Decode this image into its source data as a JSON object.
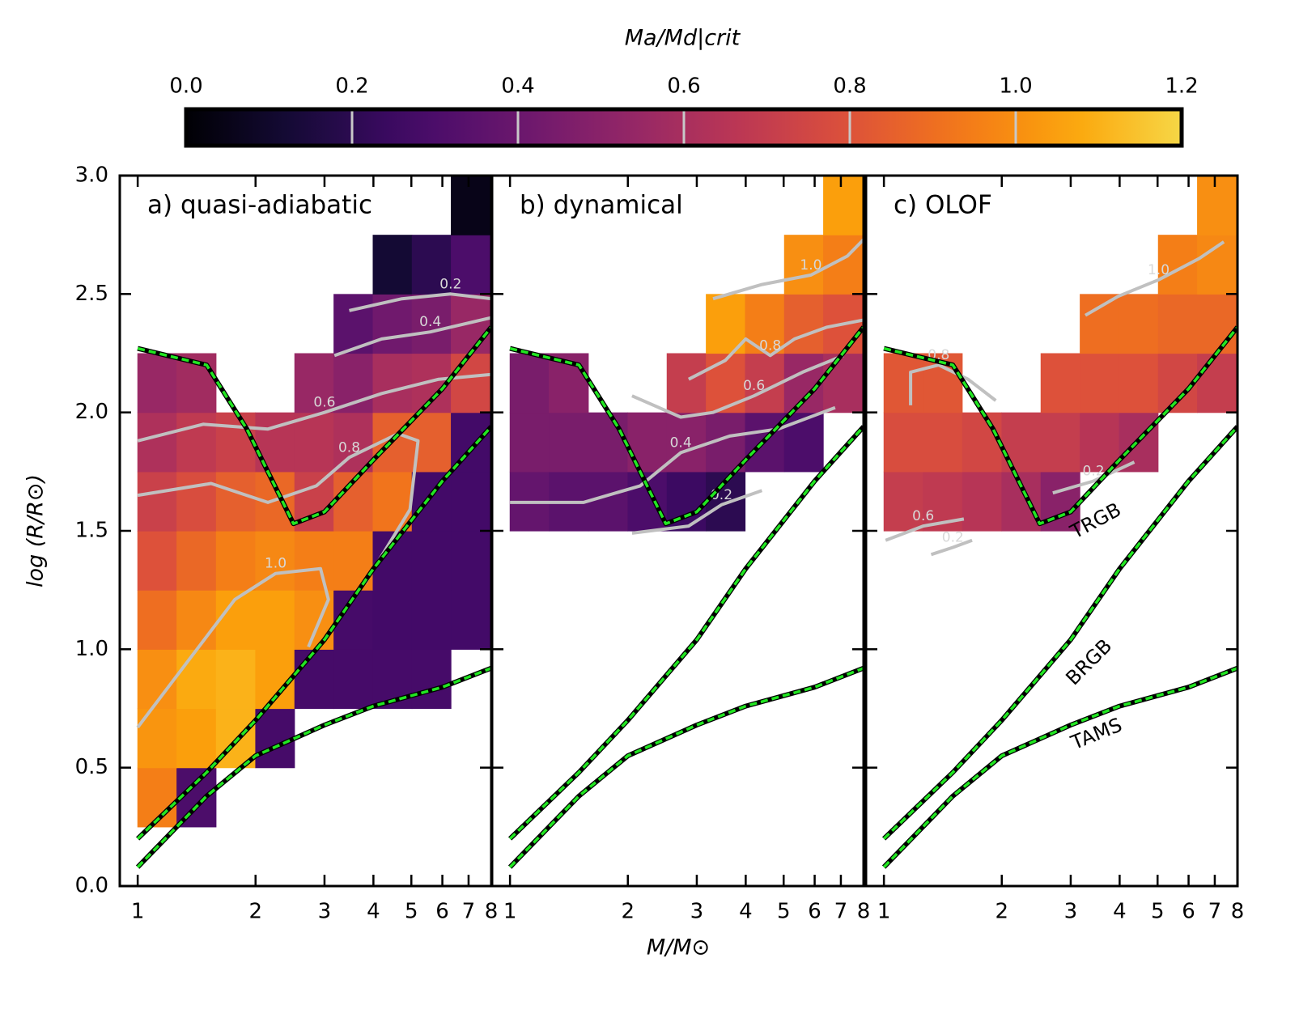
{
  "chart_data": {
    "type": "heatmap",
    "xlabel": "M/M⊙",
    "ylabel": "log (R/R⊙)",
    "xscale": "log",
    "xlim": [
      0.9,
      8
    ],
    "xticks": [
      1,
      2,
      3,
      4,
      5,
      6,
      7,
      8
    ],
    "ylim": [
      0,
      3
    ],
    "yticks": [
      {
        "value": 0,
        "label": "0.0"
      },
      0.5,
      {
        "value": 1,
        "label": "1.0"
      },
      1.5,
      {
        "value": 2,
        "label": "2.0"
      },
      2.5,
      {
        "value": 3,
        "label": "3.0"
      }
    ],
    "colorbar": {
      "label": "Ma/Md|crit",
      "colormap": "inferno",
      "lim": [
        0,
        1.2
      ],
      "ticks": [
        {
          "value": 0,
          "label": "0.0"
        },
        0.2,
        0.4,
        0.6,
        0.8,
        {
          "value": 1,
          "label": "1.0"
        },
        1.2
      ]
    },
    "contour_color": "#c0c0c0",
    "x": [
      1.12,
      1.41,
      1.78,
      2.24,
      2.82,
      3.55,
      4.47,
      5.62,
      7.08
    ],
    "y": [
      0.125,
      0.375,
      0.625,
      0.875,
      1.125,
      1.375,
      1.625,
      1.875,
      2.125,
      2.375,
      2.625,
      2.875
    ],
    "curves": [
      {
        "name": "TAMS",
        "color": "#22e622",
        "x": [
          1,
          1.5,
          2,
          3,
          4,
          6,
          8
        ],
        "y": [
          0.08,
          0.38,
          0.55,
          0.68,
          0.76,
          0.84,
          0.92
        ]
      },
      {
        "name": "BRGB",
        "color": "#22e622",
        "x": [
          1,
          1.5,
          2,
          3,
          4,
          6,
          8
        ],
        "y": [
          0.2,
          0.48,
          0.7,
          1.04,
          1.34,
          1.71,
          1.94
        ]
      },
      {
        "name": "TRGB",
        "color": "#22e622",
        "x": [
          1,
          1.5,
          1.9,
          2.5,
          3,
          4,
          6,
          8
        ],
        "y": [
          2.27,
          2.2,
          1.93,
          1.53,
          1.58,
          1.8,
          2.1,
          2.36
        ]
      }
    ],
    "panels": [
      {
        "title": "a) quasi-adiabatic",
        "values": [
          [
            null,
            null,
            null,
            null,
            null,
            null,
            null,
            null,
            null
          ],
          [
            0.95,
            0.3,
            null,
            null,
            null,
            null,
            null,
            null,
            null
          ],
          [
            1.02,
            1.05,
            1.1,
            0.28,
            null,
            null,
            null,
            null,
            null
          ],
          [
            1.0,
            1.08,
            1.1,
            1.05,
            0.28,
            0.28,
            0.28,
            0.28,
            null
          ],
          [
            0.9,
            0.98,
            1.05,
            1.05,
            1.0,
            0.28,
            0.27,
            0.27,
            0.27
          ],
          [
            0.8,
            0.88,
            0.95,
            0.98,
            0.95,
            0.95,
            0.27,
            0.27,
            0.27
          ],
          [
            0.72,
            0.78,
            0.85,
            0.88,
            0.72,
            0.85,
            0.92,
            0.27,
            0.27
          ],
          [
            0.62,
            0.68,
            0.72,
            0.65,
            0.65,
            0.62,
            0.85,
            0.85,
            0.27
          ],
          [
            0.55,
            0.58,
            null,
            null,
            0.55,
            0.5,
            0.6,
            0.62,
            0.75
          ],
          [
            null,
            null,
            null,
            null,
            null,
            0.35,
            0.42,
            0.45,
            0.55
          ],
          [
            null,
            null,
            null,
            null,
            null,
            null,
            0.12,
            0.2,
            0.3
          ],
          [
            null,
            null,
            null,
            null,
            null,
            null,
            null,
            null,
            0.05
          ]
        ],
        "contours": [
          {
            "label": "0.2",
            "x": [
              3.47,
              4.73,
              6.3,
              8.0
            ],
            "y": [
              2.43,
              2.48,
              2.5,
              2.48
            ]
          },
          {
            "label": "0.4",
            "x": [
              3.18,
              4.2,
              5.59,
              8.0
            ],
            "y": [
              2.24,
              2.31,
              2.34,
              2.4
            ]
          },
          {
            "label": "0.6",
            "x": [
              1,
              1.47,
              2.15,
              3.0,
              4.2,
              5.87,
              8.0
            ],
            "y": [
              1.88,
              1.95,
              1.93,
              2.0,
              2.08,
              2.14,
              2.16
            ]
          },
          {
            "label": "0.8",
            "x": [
              1,
              1.54,
              2.15,
              2.86,
              3.47,
              4.62,
              5.2,
              4.96,
              3.81
            ],
            "y": [
              1.65,
              1.7,
              1.62,
              1.69,
              1.81,
              1.91,
              1.88,
              1.59,
              1.28
            ]
          },
          {
            "label": "1.0",
            "x": [
              1,
              1.33,
              1.77,
              2.25,
              2.93,
              3.07,
              2.73
            ],
            "y": [
              0.67,
              0.94,
              1.21,
              1.32,
              1.34,
              1.21,
              1.01
            ]
          }
        ]
      },
      {
        "title": "b) dynamical",
        "values": [
          [
            null,
            null,
            null,
            null,
            null,
            null,
            null,
            null,
            null
          ],
          [
            null,
            null,
            null,
            null,
            null,
            null,
            null,
            null,
            null
          ],
          [
            null,
            null,
            null,
            null,
            null,
            null,
            null,
            null,
            null
          ],
          [
            null,
            null,
            null,
            null,
            null,
            null,
            null,
            null,
            null
          ],
          [
            null,
            null,
            null,
            null,
            null,
            null,
            null,
            null,
            null
          ],
          [
            null,
            null,
            null,
            null,
            null,
            null,
            null,
            null,
            null
          ],
          [
            0.38,
            0.35,
            0.35,
            0.3,
            0.25,
            0.2,
            null,
            null,
            null
          ],
          [
            0.45,
            0.45,
            0.45,
            0.5,
            0.5,
            0.45,
            0.35,
            0.3,
            null
          ],
          [
            0.45,
            0.5,
            null,
            null,
            0.7,
            0.8,
            0.7,
            0.55,
            0.6
          ],
          [
            null,
            null,
            null,
            null,
            null,
            1.05,
            0.95,
            0.85,
            0.8
          ],
          [
            null,
            null,
            null,
            null,
            null,
            null,
            null,
            1.0,
            0.95
          ],
          [
            null,
            null,
            null,
            null,
            null,
            null,
            null,
            null,
            1.05
          ]
        ],
        "contours": [
          {
            "label": "1.0",
            "x": [
              3.3,
              4.4,
              5.87,
              7.27,
              8.0
            ],
            "y": [
              2.48,
              2.54,
              2.58,
              2.66,
              2.73
            ]
          },
          {
            "label": "0.8",
            "x": [
              2.86,
              3.55,
              4.0,
              4.62,
              5.33,
              6.45,
              8.0
            ],
            "y": [
              2.14,
              2.22,
              2.31,
              2.24,
              2.31,
              2.36,
              2.39
            ]
          },
          {
            "label": "0.6",
            "x": [
              2.05,
              2.73,
              3.3,
              4.2,
              5.59,
              7.1
            ],
            "y": [
              2.07,
              1.98,
              2.0,
              2.07,
              2.17,
              2.24
            ]
          },
          {
            "label": "0.4",
            "x": [
              1,
              1.54,
              2.15,
              2.73,
              3.64,
              4.84,
              6.77
            ],
            "y": [
              1.62,
              1.62,
              1.69,
              1.83,
              1.9,
              1.93,
              2.02
            ]
          },
          {
            "label": "0.2",
            "x": [
              2.05,
              2.86,
              3.47,
              4.4
            ],
            "y": [
              1.49,
              1.52,
              1.61,
              1.67
            ]
          }
        ]
      },
      {
        "title": "c) OLOF",
        "values": [
          [
            null,
            null,
            null,
            null,
            null,
            null,
            null,
            null,
            null
          ],
          [
            null,
            null,
            null,
            null,
            null,
            null,
            null,
            null,
            null
          ],
          [
            null,
            null,
            null,
            null,
            null,
            null,
            null,
            null,
            null
          ],
          [
            null,
            null,
            null,
            null,
            null,
            null,
            null,
            null,
            null
          ],
          [
            null,
            null,
            null,
            null,
            null,
            null,
            null,
            null,
            null
          ],
          [
            null,
            null,
            null,
            null,
            null,
            null,
            null,
            null,
            null
          ],
          [
            0.7,
            0.68,
            0.65,
            0.6,
            0.5,
            null,
            null,
            null,
            null
          ],
          [
            0.78,
            0.78,
            0.75,
            0.7,
            0.7,
            0.65,
            0.6,
            null,
            null
          ],
          [
            0.82,
            0.82,
            null,
            null,
            0.8,
            0.8,
            0.8,
            0.75,
            0.7
          ],
          [
            null,
            null,
            null,
            null,
            null,
            0.9,
            0.9,
            0.88,
            0.88
          ],
          [
            null,
            null,
            null,
            null,
            null,
            null,
            null,
            0.95,
            0.98
          ],
          [
            null,
            null,
            null,
            null,
            null,
            null,
            null,
            null,
            1.0
          ]
        ],
        "contours": [
          {
            "label": "1.0",
            "x": [
              3.27,
              3.96,
              5.03,
              6.39,
              7.38
            ],
            "y": [
              2.41,
              2.49,
              2.56,
              2.65,
              2.72
            ]
          },
          {
            "label": "0.8",
            "x": [
              1.17,
              1.17,
              1.38,
              1.64,
              1.93
            ],
            "y": [
              2.03,
              2.17,
              2.2,
              2.14,
              2.05
            ]
          },
          {
            "label": "0.6",
            "x": [
              1.01,
              1.26,
              1.6
            ],
            "y": [
              1.46,
              1.52,
              1.55
            ]
          },
          {
            "label": "0.2",
            "x": [
              1.32,
              1.5,
              1.68
            ],
            "y": [
              1.4,
              1.43,
              1.46
            ]
          },
          {
            "label": "0.2",
            "x": [
              2.7,
              3.43,
              4.36
            ],
            "y": [
              1.66,
              1.71,
              1.79
            ]
          }
        ]
      }
    ]
  }
}
